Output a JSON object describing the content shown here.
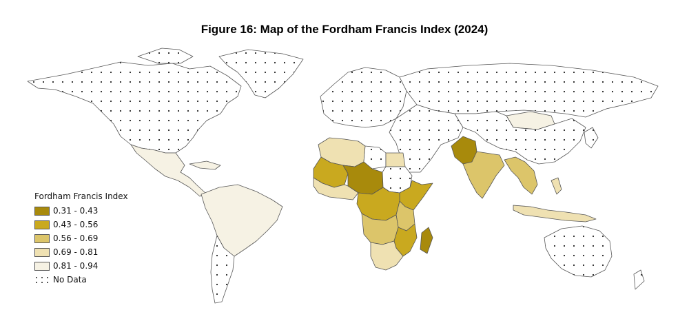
{
  "title": "Figure 16: Map of the Fordham Francis Index (2024)",
  "legend": {
    "title": "Fordham Francis Index",
    "classes": [
      {
        "label": "0.31 - 0.43",
        "color": "#a88a0c"
      },
      {
        "label": "0.43 - 0.56",
        "color": "#c9a91f"
      },
      {
        "label": "0.56 - 0.69",
        "color": "#dcc56a"
      },
      {
        "label": "0.69 - 0.81",
        "color": "#efe1b2"
      },
      {
        "label": "0.81 - 0.94",
        "color": "#f6f2e4"
      }
    ],
    "no_data_label": "No Data"
  },
  "colors": {
    "no_data": "#ffffff",
    "border": "#555555",
    "dot": "#222222"
  },
  "map_data": {
    "type": "choropleth",
    "class_by_region": {
      "north-america": "no_data",
      "greenland": "no_data",
      "mexico-central-america": "0.81 - 0.94",
      "caribbean": "0.81 - 0.94",
      "south-america": "0.81 - 0.94",
      "argentina-chile-south": "no_data",
      "europe": "no_data",
      "russia": "no_data",
      "mongolia": "0.81 - 0.94",
      "china": "no_data",
      "middle-east": "no_data",
      "maghreb": "0.69 - 0.81",
      "egypt": "0.69 - 0.81",
      "libya": "no_data",
      "sahel-west": "0.43 - 0.56",
      "chad-niger": "0.31 - 0.43",
      "sudan": "no_data",
      "west-africa-coast": "0.69 - 0.81",
      "horn-of-africa": "0.43 - 0.56",
      "central-africa": "0.43 - 0.56",
      "east-africa": "0.56 - 0.69",
      "angola-zambia": "0.56 - 0.69",
      "mozambique": "0.43 - 0.56",
      "southern-africa": "0.69 - 0.81",
      "madagascar": "0.31 - 0.43",
      "afghanistan-pakistan": "0.31 - 0.43",
      "india": "0.56 - 0.69",
      "mainland-southeast-asia": "0.56 - 0.69",
      "indonesia-philippines": "0.69 - 0.81",
      "australia": "no_data"
    }
  }
}
